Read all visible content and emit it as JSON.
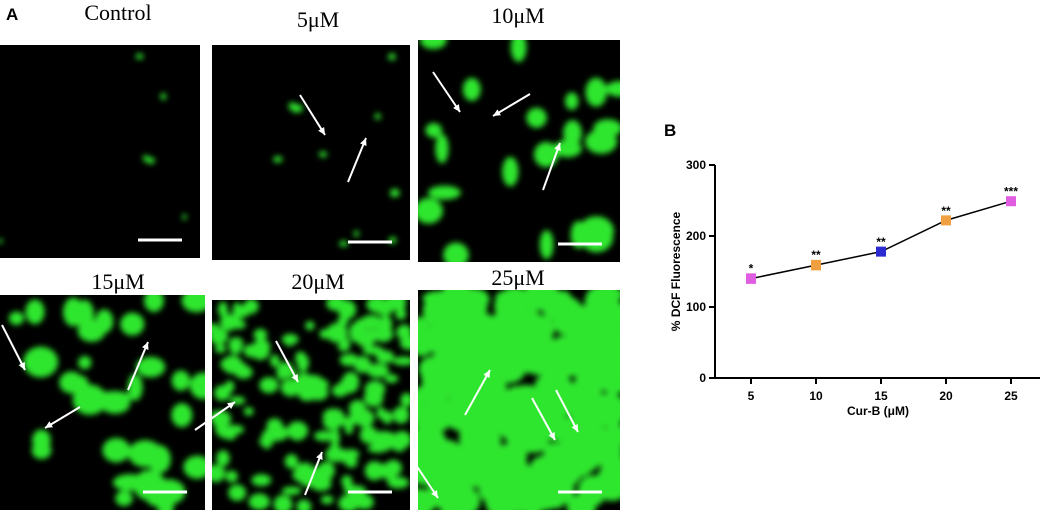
{
  "figure_labels": [
    "A",
    "B"
  ],
  "panels": [
    {
      "title": "Control"
    },
    {
      "title": "5μM"
    },
    {
      "title": "10μM"
    },
    {
      "title": "15μM"
    },
    {
      "title": "20μM"
    },
    {
      "title": "25μM"
    }
  ],
  "chart_data": {
    "type": "line",
    "x_label": "Cur-B (μM)",
    "y_label": "% DCF Fluorescence",
    "categories": [
      "5",
      "10",
      "15",
      "20",
      "25"
    ],
    "values": [
      140,
      159,
      178,
      222,
      249
    ],
    "errors": [
      6,
      6,
      5,
      5,
      5
    ],
    "annotations": [
      "*",
      "**",
      "**",
      "**",
      "***"
    ],
    "point_colors": [
      "#e05ce0",
      "#f0a040",
      "#2a2ad0",
      "#f0a040",
      "#e05ce0"
    ],
    "color": "#000000",
    "ylim": [
      0,
      300
    ],
    "yticks": [
      0,
      100,
      200,
      300
    ]
  }
}
